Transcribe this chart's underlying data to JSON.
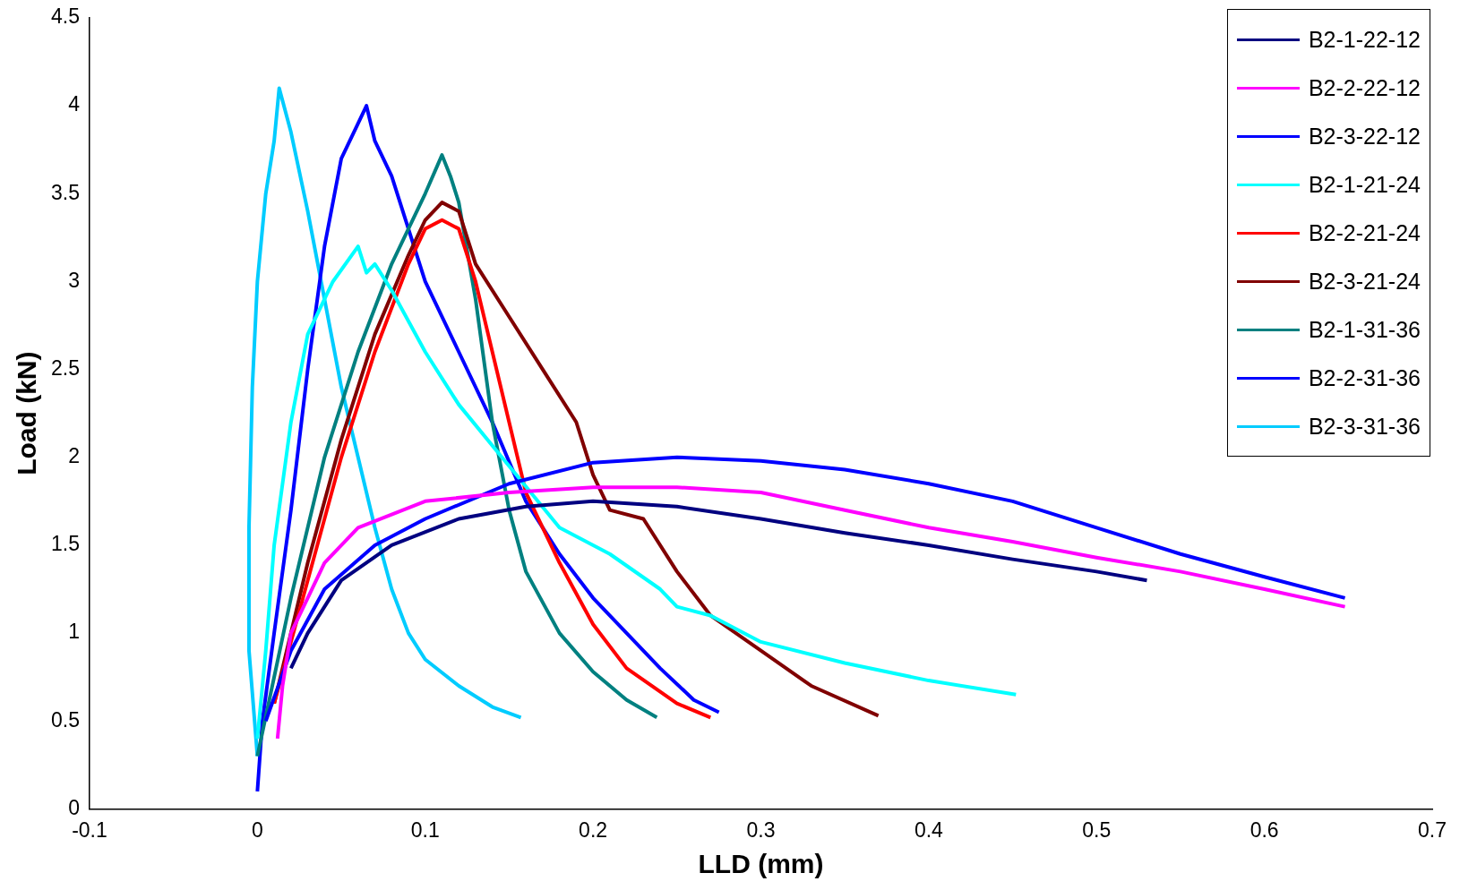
{
  "chart_data": {
    "type": "line",
    "xlabel": "LLD (mm)",
    "ylabel": "Load (kN)",
    "xlim": [
      -0.1,
      0.7
    ],
    "xticks": [
      -0.1,
      0,
      0.1,
      0.2,
      0.3,
      0.4,
      0.5,
      0.6,
      0.7
    ],
    "ylim": [
      0,
      4.5
    ],
    "yticks": [
      0,
      0.5,
      1,
      1.5,
      2,
      2.5,
      3,
      3.5,
      4,
      4.5
    ],
    "grid": false,
    "legend": "top right",
    "marker": "none",
    "line_style": "solid",
    "series": [
      {
        "name": "B2-1-22-12",
        "color": "#000080",
        "x": [
          0.02,
          0.03,
          0.05,
          0.08,
          0.12,
          0.16,
          0.2,
          0.25,
          0.3,
          0.35,
          0.4,
          0.45,
          0.5,
          0.53
        ],
        "values": [
          0.8,
          1.0,
          1.3,
          1.5,
          1.65,
          1.72,
          1.75,
          1.72,
          1.65,
          1.57,
          1.5,
          1.42,
          1.35,
          1.3
        ]
      },
      {
        "name": "B2-2-22-12",
        "color": "#ff00ff",
        "x": [
          0.012,
          0.015,
          0.02,
          0.04,
          0.06,
          0.1,
          0.15,
          0.2,
          0.25,
          0.3,
          0.35,
          0.4,
          0.45,
          0.5,
          0.55,
          0.6,
          0.648
        ],
        "values": [
          0.4,
          0.7,
          1.0,
          1.4,
          1.6,
          1.75,
          1.8,
          1.83,
          1.83,
          1.8,
          1.7,
          1.6,
          1.52,
          1.43,
          1.35,
          1.25,
          1.15
        ]
      },
      {
        "name": "B2-3-22-12",
        "color": "#0000ff",
        "x": [
          0.005,
          0.02,
          0.04,
          0.07,
          0.1,
          0.15,
          0.2,
          0.25,
          0.3,
          0.35,
          0.4,
          0.45,
          0.5,
          0.55,
          0.6,
          0.648
        ],
        "values": [
          0.5,
          0.9,
          1.25,
          1.5,
          1.65,
          1.85,
          1.97,
          2.0,
          1.98,
          1.93,
          1.85,
          1.75,
          1.6,
          1.45,
          1.32,
          1.2
        ]
      },
      {
        "name": "B2-1-21-24",
        "color": "#00ffff",
        "x": [
          0,
          0.005,
          0.01,
          0.02,
          0.03,
          0.045,
          0.06,
          0.065,
          0.07,
          0.08,
          0.1,
          0.12,
          0.15,
          0.18,
          0.21,
          0.24,
          0.25,
          0.27,
          0.3,
          0.35,
          0.4,
          0.452
        ],
        "values": [
          0.4,
          0.9,
          1.5,
          2.2,
          2.7,
          3.0,
          3.2,
          3.05,
          3.1,
          2.95,
          2.6,
          2.3,
          1.95,
          1.6,
          1.45,
          1.25,
          1.15,
          1.1,
          0.95,
          0.83,
          0.73,
          0.65
        ]
      },
      {
        "name": "B2-2-21-24",
        "color": "#ff0000",
        "x": [
          0.01,
          0.03,
          0.05,
          0.07,
          0.09,
          0.1,
          0.11,
          0.12,
          0.13,
          0.14,
          0.15,
          0.16,
          0.18,
          0.2,
          0.22,
          0.25,
          0.27
        ],
        "values": [
          0.6,
          1.3,
          2.0,
          2.6,
          3.1,
          3.3,
          3.35,
          3.3,
          3.0,
          2.6,
          2.2,
          1.8,
          1.4,
          1.05,
          0.8,
          0.6,
          0.52
        ]
      },
      {
        "name": "B2-3-21-24",
        "color": "#800000",
        "x": [
          0.01,
          0.03,
          0.05,
          0.07,
          0.09,
          0.1,
          0.11,
          0.12,
          0.13,
          0.15,
          0.17,
          0.19,
          0.2,
          0.21,
          0.23,
          0.25,
          0.27,
          0.3,
          0.33,
          0.37
        ],
        "values": [
          0.6,
          1.4,
          2.1,
          2.7,
          3.15,
          3.35,
          3.45,
          3.4,
          3.1,
          2.8,
          2.5,
          2.2,
          1.9,
          1.7,
          1.65,
          1.35,
          1.1,
          0.9,
          0.7,
          0.53
        ]
      },
      {
        "name": "B2-1-31-36",
        "color": "#008080",
        "x": [
          0,
          0.02,
          0.04,
          0.06,
          0.08,
          0.1,
          0.11,
          0.115,
          0.12,
          0.13,
          0.14,
          0.15,
          0.16,
          0.18,
          0.2,
          0.22,
          0.238
        ],
        "values": [
          0.3,
          1.2,
          2.0,
          2.6,
          3.1,
          3.5,
          3.72,
          3.6,
          3.45,
          2.9,
          2.2,
          1.7,
          1.35,
          1.0,
          0.78,
          0.62,
          0.52
        ]
      },
      {
        "name": "B2-2-31-36",
        "color": "#0000ff",
        "x": [
          0,
          0.003,
          0.01,
          0.02,
          0.03,
          0.04,
          0.05,
          0.06,
          0.065,
          0.07,
          0.08,
          0.09,
          0.1,
          0.12,
          0.14,
          0.16,
          0.18,
          0.2,
          0.22,
          0.24,
          0.26,
          0.275
        ],
        "values": [
          0.1,
          0.5,
          1.0,
          1.7,
          2.5,
          3.2,
          3.7,
          3.9,
          4.0,
          3.8,
          3.6,
          3.3,
          3.0,
          2.6,
          2.2,
          1.75,
          1.45,
          1.2,
          1.0,
          0.8,
          0.62,
          0.55
        ]
      },
      {
        "name": "B2-3-31-36",
        "color": "#00ccff",
        "x": [
          0,
          -0.005,
          -0.005,
          -0.003,
          0,
          0.005,
          0.01,
          0.013,
          0.02,
          0.03,
          0.04,
          0.05,
          0.06,
          0.07,
          0.08,
          0.09,
          0.1,
          0.12,
          0.14,
          0.157
        ],
        "values": [
          0.3,
          0.9,
          1.6,
          2.4,
          3.0,
          3.5,
          3.8,
          4.1,
          3.85,
          3.4,
          2.9,
          2.4,
          2.0,
          1.6,
          1.25,
          1.0,
          0.85,
          0.7,
          0.58,
          0.52
        ]
      }
    ]
  }
}
